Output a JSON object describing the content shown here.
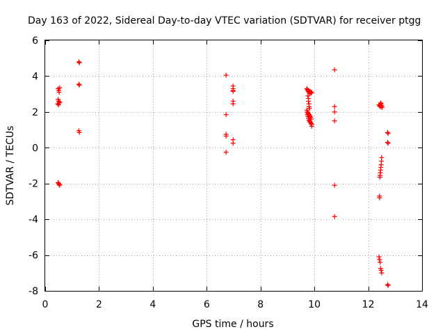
{
  "chart_data": {
    "type": "scatter",
    "title": "Day 163 of 2022, Sidereal Day-to-day VTEC variation (SDTVAR) for receiver ptgg",
    "xlabel": "GPS time / hours",
    "ylabel": "SDTVAR / TECUs",
    "xlim": [
      0,
      14
    ],
    "ylim": [
      -8,
      6
    ],
    "xticks": [
      0,
      2,
      4,
      6,
      8,
      10,
      12,
      14
    ],
    "yticks": [
      -8,
      -6,
      -4,
      -2,
      0,
      2,
      4,
      6
    ],
    "grid": true,
    "marker": "+",
    "color": "#ff0000",
    "series": [
      {
        "name": "SDTVAR",
        "points": [
          [
            0.48,
            3.3
          ],
          [
            0.5,
            3.2
          ],
          [
            0.52,
            3.1
          ],
          [
            0.54,
            3.35
          ],
          [
            0.48,
            2.7
          ],
          [
            0.5,
            2.6
          ],
          [
            0.52,
            2.5
          ],
          [
            0.5,
            2.4
          ],
          [
            0.54,
            2.55
          ],
          [
            0.46,
            2.45
          ],
          [
            0.48,
            -1.95
          ],
          [
            0.5,
            -2.0
          ],
          [
            0.52,
            -2.05
          ],
          [
            0.54,
            -2.1
          ],
          [
            1.25,
            4.8
          ],
          [
            1.27,
            4.75
          ],
          [
            1.25,
            3.55
          ],
          [
            1.27,
            3.5
          ],
          [
            1.25,
            0.95
          ],
          [
            1.27,
            0.85
          ],
          [
            6.72,
            4.05
          ],
          [
            6.72,
            1.85
          ],
          [
            6.72,
            0.75
          ],
          [
            6.72,
            0.65
          ],
          [
            6.72,
            -0.25
          ],
          [
            6.98,
            3.45
          ],
          [
            6.98,
            3.3
          ],
          [
            6.98,
            3.2
          ],
          [
            6.98,
            3.15
          ],
          [
            6.98,
            2.6
          ],
          [
            6.98,
            2.45
          ],
          [
            6.98,
            0.45
          ],
          [
            6.98,
            0.25
          ],
          [
            9.72,
            3.3
          ],
          [
            9.74,
            3.25
          ],
          [
            9.76,
            3.2
          ],
          [
            9.78,
            3.15
          ],
          [
            9.8,
            3.1
          ],
          [
            9.82,
            3.05
          ],
          [
            9.84,
            3.15
          ],
          [
            9.86,
            3.1
          ],
          [
            9.88,
            3.05
          ],
          [
            9.9,
            3.1
          ],
          [
            9.76,
            2.9
          ],
          [
            9.78,
            2.75
          ],
          [
            9.78,
            2.6
          ],
          [
            9.8,
            2.45
          ],
          [
            9.8,
            2.3
          ],
          [
            9.82,
            2.2
          ],
          [
            9.72,
            2.1
          ],
          [
            9.74,
            2.0
          ],
          [
            9.76,
            1.95
          ],
          [
            9.78,
            1.9
          ],
          [
            9.8,
            1.85
          ],
          [
            9.82,
            1.8
          ],
          [
            9.84,
            1.75
          ],
          [
            9.86,
            1.7
          ],
          [
            9.88,
            1.6
          ],
          [
            9.78,
            1.65
          ],
          [
            9.8,
            1.55
          ],
          [
            9.82,
            1.5
          ],
          [
            9.84,
            1.45
          ],
          [
            9.86,
            1.4
          ],
          [
            9.88,
            1.35
          ],
          [
            9.9,
            1.3
          ],
          [
            9.9,
            1.2
          ],
          [
            9.76,
            1.75
          ],
          [
            9.74,
            1.85
          ],
          [
            10.75,
            4.35
          ],
          [
            10.75,
            2.3
          ],
          [
            10.75,
            2.0
          ],
          [
            10.75,
            1.5
          ],
          [
            10.75,
            -2.1
          ],
          [
            10.75,
            -3.85
          ],
          [
            12.4,
            2.4
          ],
          [
            12.42,
            2.35
          ],
          [
            12.44,
            2.3
          ],
          [
            12.46,
            2.5
          ],
          [
            12.48,
            2.45
          ],
          [
            12.5,
            2.35
          ],
          [
            12.52,
            2.25
          ],
          [
            12.44,
            2.4
          ],
          [
            12.48,
            2.3
          ],
          [
            12.5,
            -0.55
          ],
          [
            12.49,
            -0.75
          ],
          [
            12.48,
            -0.95
          ],
          [
            12.47,
            -1.1
          ],
          [
            12.46,
            -1.25
          ],
          [
            12.45,
            -1.4
          ],
          [
            12.44,
            -1.55
          ],
          [
            12.43,
            -1.65
          ],
          [
            12.42,
            -2.7
          ],
          [
            12.42,
            -2.8
          ],
          [
            12.4,
            -6.1
          ],
          [
            12.42,
            -6.25
          ],
          [
            12.44,
            -6.4
          ],
          [
            12.46,
            -6.75
          ],
          [
            12.48,
            -6.85
          ],
          [
            12.5,
            -7.0
          ],
          [
            12.72,
            -7.65
          ],
          [
            12.74,
            -7.7
          ],
          [
            12.72,
            0.85
          ],
          [
            12.74,
            0.8
          ],
          [
            12.72,
            0.3
          ],
          [
            12.74,
            0.25
          ]
        ]
      }
    ]
  }
}
